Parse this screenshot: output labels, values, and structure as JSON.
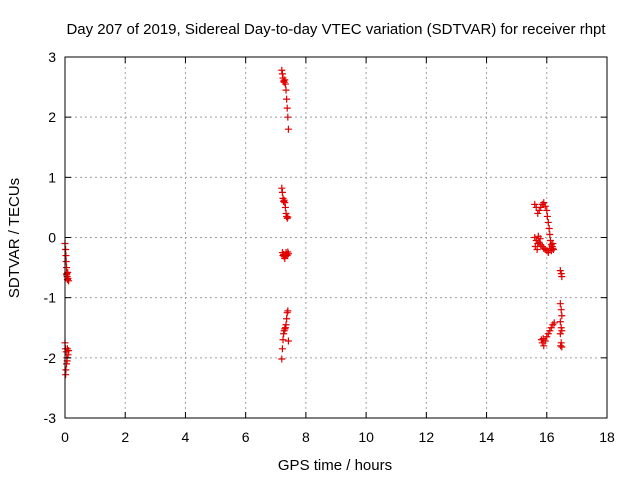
{
  "chart_data": {
    "type": "scatter",
    "title": "Day 207 of 2019, Sidereal Day-to-day VTEC variation (SDTVAR) for receiver rhpt",
    "xlabel": "GPS time / hours",
    "ylabel": "SDTVAR / TECUs",
    "xlim": [
      0,
      18
    ],
    "ylim": [
      -3,
      3
    ],
    "xticks": [
      "0",
      "2",
      "4",
      "6",
      "8",
      "10",
      "12",
      "14",
      "16",
      "18"
    ],
    "yticks": [
      "-3",
      "-2",
      "-1",
      "0",
      "1",
      "2",
      "3"
    ],
    "grid": true,
    "marker": "plus",
    "marker_color": "#e00000",
    "series": [
      {
        "name": "SDTVAR",
        "points": [
          [
            0.0,
            -0.1
          ],
          [
            0.02,
            -0.2
          ],
          [
            0.03,
            -0.3
          ],
          [
            0.04,
            -0.4
          ],
          [
            0.05,
            -0.5
          ],
          [
            0.06,
            -0.6
          ],
          [
            0.07,
            -0.65
          ],
          [
            0.08,
            -0.7
          ],
          [
            0.05,
            -0.62
          ],
          [
            0.1,
            -0.68
          ],
          [
            0.12,
            -0.72
          ],
          [
            0.09,
            -0.58
          ],
          [
            0.0,
            -1.75
          ],
          [
            0.02,
            -1.85
          ],
          [
            0.04,
            -1.9
          ],
          [
            0.06,
            -2.0
          ],
          [
            0.05,
            -2.1
          ],
          [
            0.03,
            -2.2
          ],
          [
            0.02,
            -2.28
          ],
          [
            0.08,
            -1.85
          ],
          [
            0.1,
            -1.95
          ],
          [
            0.12,
            -1.88
          ],
          [
            0.07,
            -2.05
          ],
          [
            7.2,
            2.78
          ],
          [
            7.22,
            2.72
          ],
          [
            7.24,
            2.65
          ],
          [
            7.26,
            2.6
          ],
          [
            7.28,
            2.58
          ],
          [
            7.3,
            2.62
          ],
          [
            7.32,
            2.55
          ],
          [
            7.34,
            2.45
          ],
          [
            7.36,
            2.3
          ],
          [
            7.38,
            2.15
          ],
          [
            7.4,
            2.0
          ],
          [
            7.42,
            1.8
          ],
          [
            7.2,
            0.82
          ],
          [
            7.22,
            0.75
          ],
          [
            7.24,
            0.65
          ],
          [
            7.26,
            0.6
          ],
          [
            7.28,
            0.62
          ],
          [
            7.3,
            0.58
          ],
          [
            7.32,
            0.5
          ],
          [
            7.34,
            0.4
          ],
          [
            7.36,
            0.35
          ],
          [
            7.38,
            0.32
          ],
          [
            7.4,
            0.34
          ],
          [
            7.22,
            -0.25
          ],
          [
            7.24,
            -0.3
          ],
          [
            7.26,
            -0.28
          ],
          [
            7.28,
            -0.32
          ],
          [
            7.3,
            -0.35
          ],
          [
            7.32,
            -0.3
          ],
          [
            7.34,
            -0.25
          ],
          [
            7.36,
            -0.28
          ],
          [
            7.38,
            -0.3
          ],
          [
            7.4,
            -0.24
          ],
          [
            7.42,
            -0.27
          ],
          [
            7.2,
            -2.02
          ],
          [
            7.22,
            -1.85
          ],
          [
            7.24,
            -1.7
          ],
          [
            7.26,
            -1.6
          ],
          [
            7.28,
            -1.55
          ],
          [
            7.3,
            -1.52
          ],
          [
            7.32,
            -1.5
          ],
          [
            7.34,
            -1.45
          ],
          [
            7.36,
            -1.35
          ],
          [
            7.38,
            -1.25
          ],
          [
            7.4,
            -1.22
          ],
          [
            7.42,
            -1.72
          ],
          [
            15.6,
            0.55
          ],
          [
            15.65,
            0.5
          ],
          [
            15.7,
            0.4
          ],
          [
            15.75,
            0.45
          ],
          [
            15.8,
            0.5
          ],
          [
            15.85,
            0.55
          ],
          [
            15.9,
            0.58
          ],
          [
            15.95,
            0.52
          ],
          [
            16.0,
            0.45
          ],
          [
            16.02,
            0.35
          ],
          [
            16.05,
            0.25
          ],
          [
            16.08,
            0.15
          ],
          [
            16.1,
            0.05
          ],
          [
            16.12,
            -0.05
          ],
          [
            16.15,
            -0.12
          ],
          [
            16.18,
            -0.15
          ],
          [
            16.2,
            -0.18
          ],
          [
            16.22,
            -0.2
          ],
          [
            15.6,
            0.0
          ],
          [
            15.65,
            -0.05
          ],
          [
            15.7,
            -0.1
          ],
          [
            15.75,
            -0.08
          ],
          [
            15.8,
            -0.12
          ],
          [
            15.85,
            -0.15
          ],
          [
            15.9,
            -0.18
          ],
          [
            15.95,
            -0.2
          ],
          [
            16.0,
            -0.22
          ],
          [
            15.62,
            -0.15
          ],
          [
            15.68,
            -0.2
          ],
          [
            15.78,
            -0.02
          ],
          [
            16.05,
            -0.25
          ],
          [
            16.1,
            -0.18
          ],
          [
            15.72,
            0.02
          ],
          [
            16.15,
            -0.22
          ],
          [
            16.2,
            -0.1
          ],
          [
            15.82,
            -1.7
          ],
          [
            15.85,
            -1.75
          ],
          [
            15.9,
            -1.8
          ],
          [
            15.95,
            -1.72
          ],
          [
            16.0,
            -1.65
          ],
          [
            16.05,
            -1.6
          ],
          [
            16.1,
            -1.55
          ],
          [
            16.15,
            -1.5
          ],
          [
            16.2,
            -1.45
          ],
          [
            16.25,
            -1.42
          ],
          [
            15.88,
            -1.68
          ],
          [
            16.45,
            -0.55
          ],
          [
            16.48,
            -0.6
          ],
          [
            16.5,
            -0.65
          ],
          [
            16.45,
            -1.1
          ],
          [
            16.48,
            -1.2
          ],
          [
            16.5,
            -1.3
          ],
          [
            16.45,
            -1.4
          ],
          [
            16.48,
            -1.5
          ],
          [
            16.5,
            -1.55
          ],
          [
            16.45,
            -1.6
          ],
          [
            16.48,
            -1.75
          ],
          [
            16.5,
            -1.82
          ],
          [
            16.46,
            -1.8
          ]
        ]
      }
    ]
  }
}
